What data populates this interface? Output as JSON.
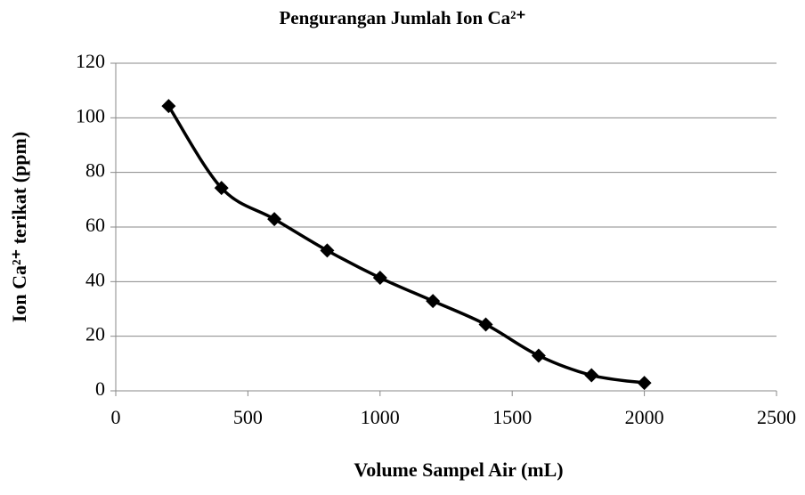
{
  "chart_data": {
    "type": "scatter",
    "title": "Pengurangan Jumlah Ion Ca²⁺",
    "x_label": "Volume Sampel Air (mL)",
    "y_label": "Ion Ca²⁺ terikat (ppm)",
    "series": [
      {
        "name": "Ion Ca²⁺",
        "color": "#000000",
        "x": [
          200,
          400,
          600,
          800,
          1000,
          1200,
          1400,
          1600,
          1800,
          2000
        ],
        "values": [
          104.3,
          74.3,
          62.9,
          51.4,
          41.4,
          32.9,
          24.3,
          12.9,
          5.7,
          2.9
        ]
      }
    ],
    "smooth": true,
    "grid": true,
    "xlim": [
      0,
      2500
    ],
    "xticks": [
      0,
      500,
      1000,
      1500,
      2000,
      2500
    ],
    "ylim": [
      0,
      120
    ],
    "yticks": [
      0,
      20,
      40,
      60,
      80,
      100,
      120
    ]
  }
}
